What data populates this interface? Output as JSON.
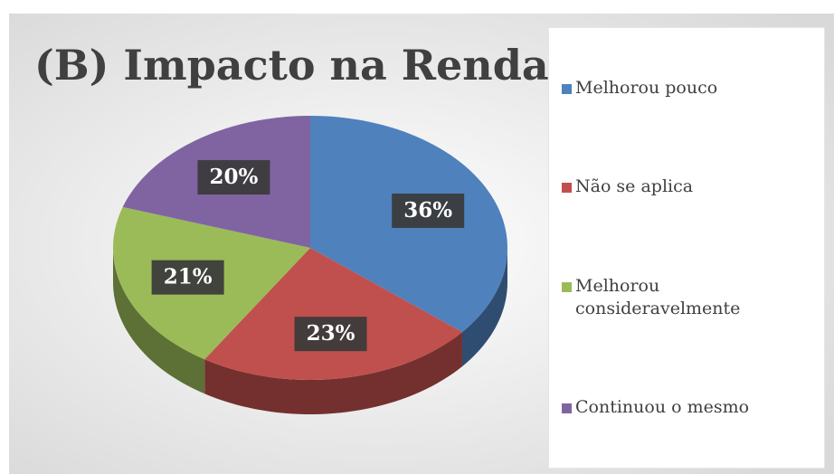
{
  "chart_data": {
    "type": "pie",
    "title": "(B) Impacto na Renda",
    "categories": [
      "Melhorou pouco",
      "Não se aplica",
      "Melhorou consideravelmente",
      "Continuou o mesmo"
    ],
    "values": [
      36,
      23,
      21,
      20
    ],
    "value_labels": [
      "36%",
      "23%",
      "21%",
      "20%"
    ],
    "colors": [
      "#4f81bd",
      "#c0504d",
      "#9bbb59",
      "#8064a2"
    ],
    "legend": "right"
  }
}
